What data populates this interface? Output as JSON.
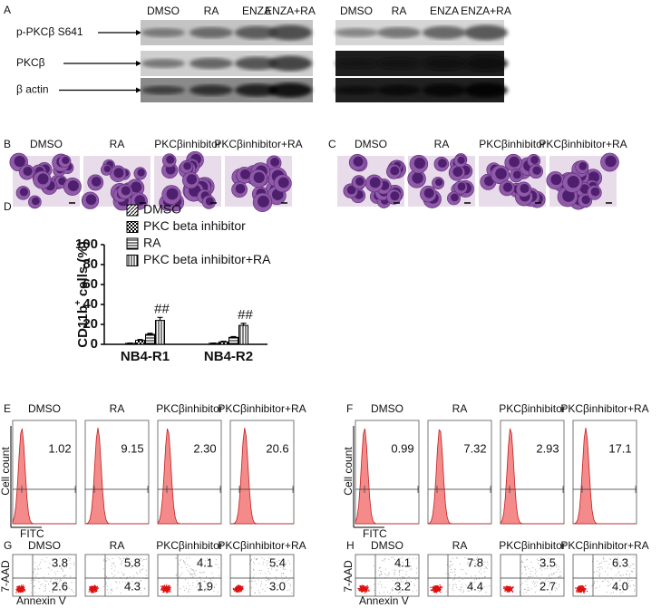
{
  "panel_a": {
    "label": "A",
    "lanes_left": [
      "DMSO",
      "RA",
      "ENZA",
      "ENZA+RA"
    ],
    "lanes_right": [
      "DMSO",
      "RA",
      "ENZA",
      "ENZA+RA"
    ],
    "rows": [
      "p-PKCβ S641",
      "PKCβ",
      "β actin"
    ]
  },
  "panel_b": {
    "label": "B",
    "headers": [
      "DMSO",
      "RA",
      "PKCβinhibitor",
      "PKCβinhibitor+RA"
    ]
  },
  "panel_c": {
    "label": "C",
    "headers": [
      "DMSO",
      "RA",
      "PKCβinhibitor",
      "PKCβinhibitor+RA"
    ]
  },
  "chart_data": {
    "type": "bar",
    "panel_label": "D",
    "ylabel": "CD11b",
    "ylabel_superscript": "+",
    "ylabel_rest": "cells (%)",
    "categories": [
      "NB4-R1",
      "NB4-R2"
    ],
    "series": [
      {
        "name": "DMSO",
        "color": "#000000",
        "pattern": "diagonal",
        "values": [
          1,
          1
        ],
        "errors": [
          0.3,
          0.3
        ]
      },
      {
        "name": "PKC beta inhibitor",
        "color": "#000000",
        "pattern": "checker",
        "values": [
          4,
          2.5
        ],
        "errors": [
          0.8,
          0.6
        ]
      },
      {
        "name": "RA",
        "color": "#000000",
        "pattern": "horizontal",
        "values": [
          10,
          7
        ],
        "errors": [
          1,
          0.8
        ]
      },
      {
        "name": "PKC beta inhibitor+RA",
        "color": "#000000",
        "pattern": "vertical",
        "values": [
          24,
          19
        ],
        "errors": [
          3,
          2
        ],
        "annotations": [
          "##",
          "##"
        ]
      }
    ],
    "ylim": [
      0,
      100
    ],
    "yticks": [
      0,
      20,
      40,
      60,
      80,
      100
    ]
  },
  "panel_e": {
    "label": "E",
    "headers": [
      "DMSO",
      "RA",
      "PKCβinhibitor",
      "PKCβinhibitor+RA"
    ],
    "values": [
      "1.02",
      "9.15",
      "2.30",
      "20.6"
    ],
    "ylabel": "Cell count",
    "xlabel": "FITC"
  },
  "panel_f": {
    "label": "F",
    "headers": [
      "DMSO",
      "RA",
      "PKCβinhibitor",
      "PKCβinhibitor+RA"
    ],
    "values": [
      "0.99",
      "7.32",
      "2.93",
      "17.1"
    ],
    "ylabel": "Cell count",
    "xlabel": "FITC"
  },
  "panel_g": {
    "label": "G",
    "headers": [
      "DMSO",
      "RA",
      "PKCβinhibitor",
      "PKCβinhibitor+RA"
    ],
    "upper_right": [
      "3.8",
      "5.8",
      "4.1",
      "5.4"
    ],
    "lower_right": [
      "2.6",
      "4.3",
      "1.9",
      "3.0"
    ],
    "ylabel": "7-AAD",
    "xlabel": "Annexin V"
  },
  "panel_h": {
    "label": "H",
    "headers": [
      "DMSO",
      "RA",
      "PKCβinhibitor",
      "PKCβinhibitor+RA"
    ],
    "upper_right": [
      "4.1",
      "7.8",
      "3.5",
      "6.3"
    ],
    "lower_right": [
      "3.2",
      "4.4",
      "2.7",
      "4.0"
    ],
    "ylabel": "7-AAD",
    "xlabel": "Annexin V"
  }
}
